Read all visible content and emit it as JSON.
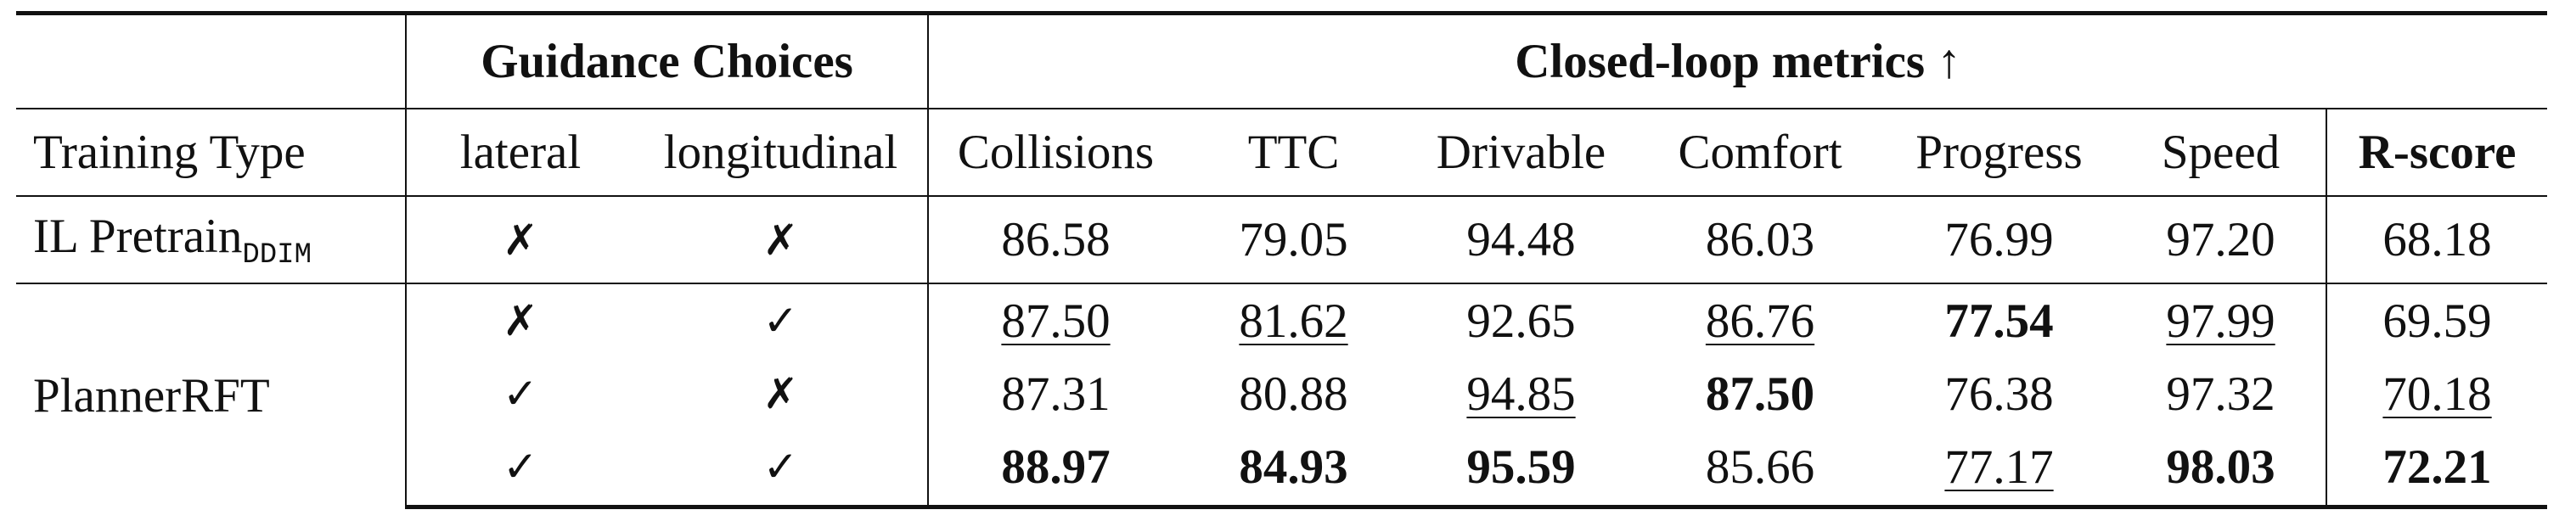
{
  "table": {
    "group_headers": [
      "Guidance Choices",
      "Closed-loop metrics ↑"
    ],
    "columns": [
      "Training Type",
      "lateral",
      "longitudinal",
      "Collisions",
      "TTC",
      "Drivable",
      "Comfort",
      "Progress",
      "Speed",
      "R-score"
    ],
    "rows": [
      {
        "label": "IL Pretrain",
        "label_subscript": "DDIM",
        "lines": [
          [
            "✗",
            "✗",
            "86.58",
            "79.05",
            "94.48",
            "86.03",
            "76.99",
            "97.20",
            "68.18"
          ]
        ]
      },
      {
        "label": "PlannerRFT",
        "lines": [
          [
            "✗",
            "✓",
            "87.50",
            "81.62",
            "92.65",
            "86.76",
            "77.54",
            "97.99",
            "69.59"
          ],
          [
            "✓",
            "✗",
            "87.31",
            "80.88",
            "94.85",
            "87.50",
            "76.38",
            "97.32",
            "70.18"
          ],
          [
            "✓",
            "✓",
            "88.97",
            "84.93",
            "95.59",
            "85.66",
            "77.17",
            "98.03",
            "72.21"
          ]
        ]
      }
    ]
  }
}
